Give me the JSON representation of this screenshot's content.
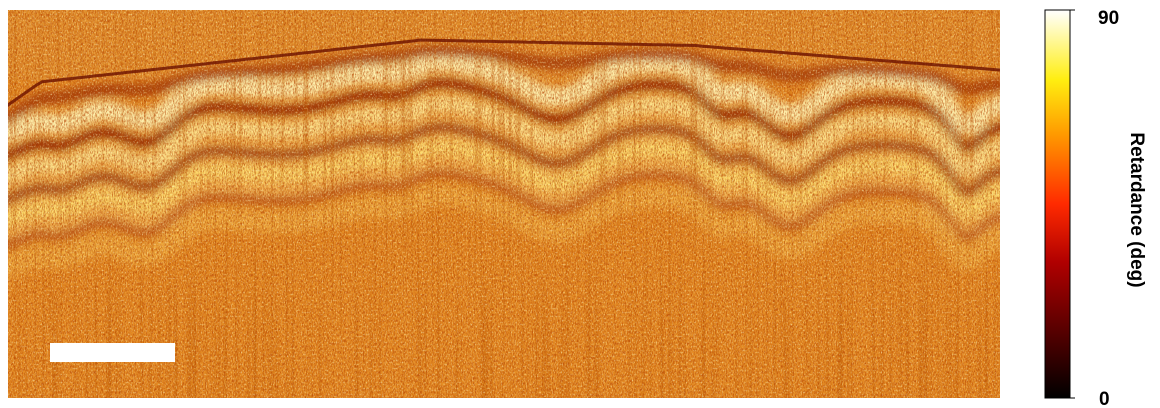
{
  "colorbar": {
    "title": "Retardance (deg)",
    "max": 90,
    "min": 0
  }
}
